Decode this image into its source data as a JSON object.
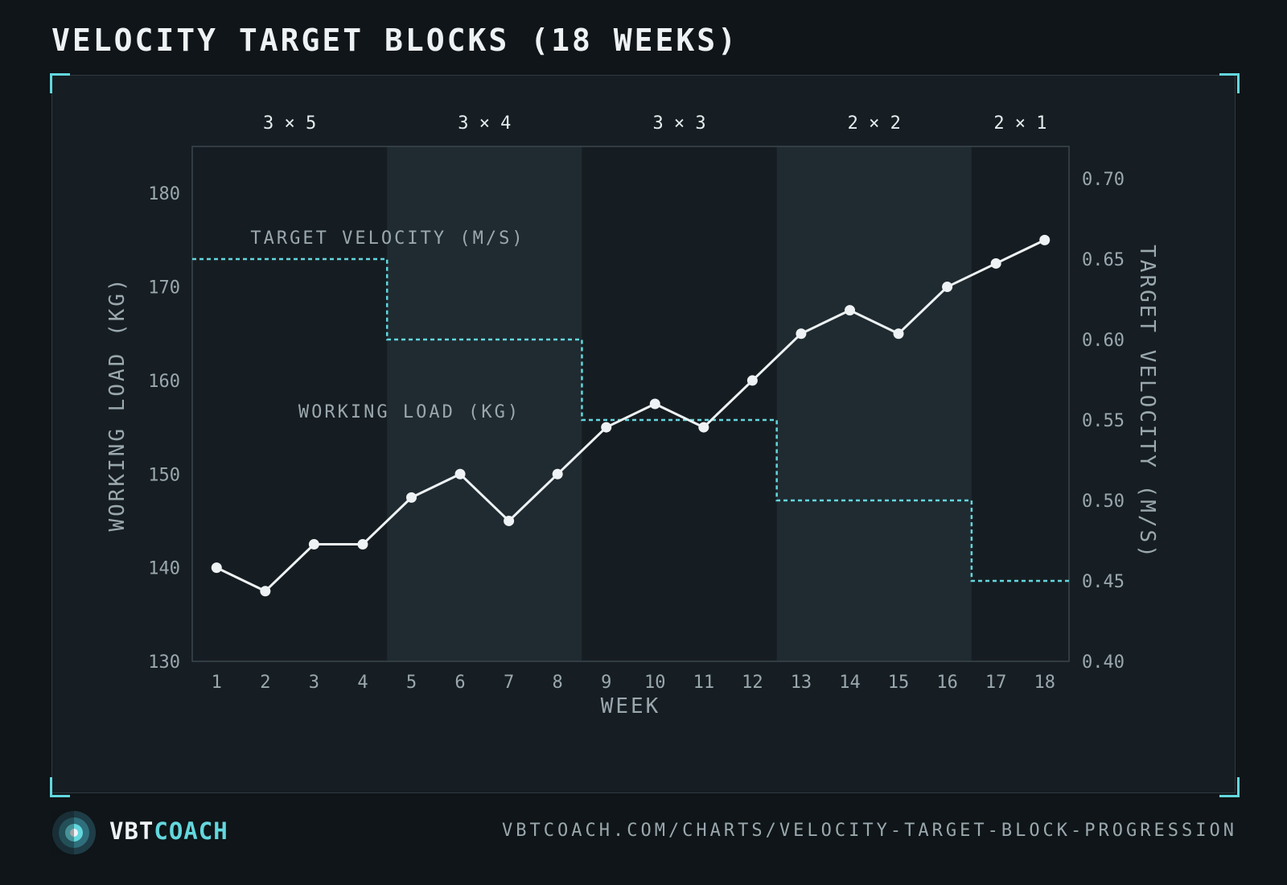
{
  "title": "VELOCITY TARGET BLOCKS (18 WEEKS)",
  "colors": {
    "background": "#0f1518",
    "panel": "#161e23",
    "block_dark": "#161d22",
    "block_light": "#1f2b31",
    "load_line": "#eef2f4",
    "velocity_line": "#63d7de",
    "axis_text": "#9aa8ae",
    "accent": "#63d7de"
  },
  "chart_data": {
    "type": "line",
    "x": [
      1,
      2,
      3,
      4,
      5,
      6,
      7,
      8,
      9,
      10,
      11,
      12,
      13,
      14,
      15,
      16,
      17,
      18
    ],
    "xlabel": "WEEK",
    "ylabel": "WORKING LOAD (KG)",
    "ylabel_right": "TARGET VELOCITY (M/S)",
    "ylim": [
      130,
      185
    ],
    "ylim_right": [
      0.4,
      0.72
    ],
    "yticks": [
      130,
      140,
      150,
      160,
      170,
      180
    ],
    "yticks_right": [
      0.4,
      0.45,
      0.5,
      0.55,
      0.6,
      0.65,
      0.7
    ],
    "ytick_labels_right": [
      "0.40",
      "0.45",
      "0.50",
      "0.55",
      "0.60",
      "0.65",
      "0.70"
    ],
    "series": [
      {
        "name": "WORKING LOAD (KG)",
        "axis": "left",
        "values": [
          140,
          137.5,
          142.5,
          142.5,
          147.5,
          150,
          145,
          150,
          155,
          157.5,
          155,
          160,
          165,
          167.5,
          165,
          170,
          172.5,
          175
        ]
      },
      {
        "name": "TARGET VELOCITY (M/S)",
        "axis": "right",
        "style": "dashed-step",
        "values": [
          0.65,
          0.65,
          0.65,
          0.65,
          0.6,
          0.6,
          0.6,
          0.6,
          0.55,
          0.55,
          0.55,
          0.55,
          0.5,
          0.5,
          0.5,
          0.5,
          0.45,
          0.45
        ]
      }
    ],
    "blocks": [
      {
        "label": "3 × 5",
        "start_week": 1,
        "end_week": 4
      },
      {
        "label": "3 × 4",
        "start_week": 5,
        "end_week": 8
      },
      {
        "label": "3 × 3",
        "start_week": 9,
        "end_week": 12
      },
      {
        "label": "2 × 2",
        "start_week": 13,
        "end_week": 16
      },
      {
        "label": "2 × 1",
        "start_week": 17,
        "end_week": 18
      }
    ],
    "annotations": [
      "TARGET VELOCITY (M/S)",
      "WORKING LOAD (KG)"
    ]
  },
  "footer": {
    "brand_part1": "VBT",
    "brand_part2": "COACH",
    "url": "VBTCOACH.COM/CHARTS/VELOCITY-TARGET-BLOCK-PROGRESSION"
  }
}
